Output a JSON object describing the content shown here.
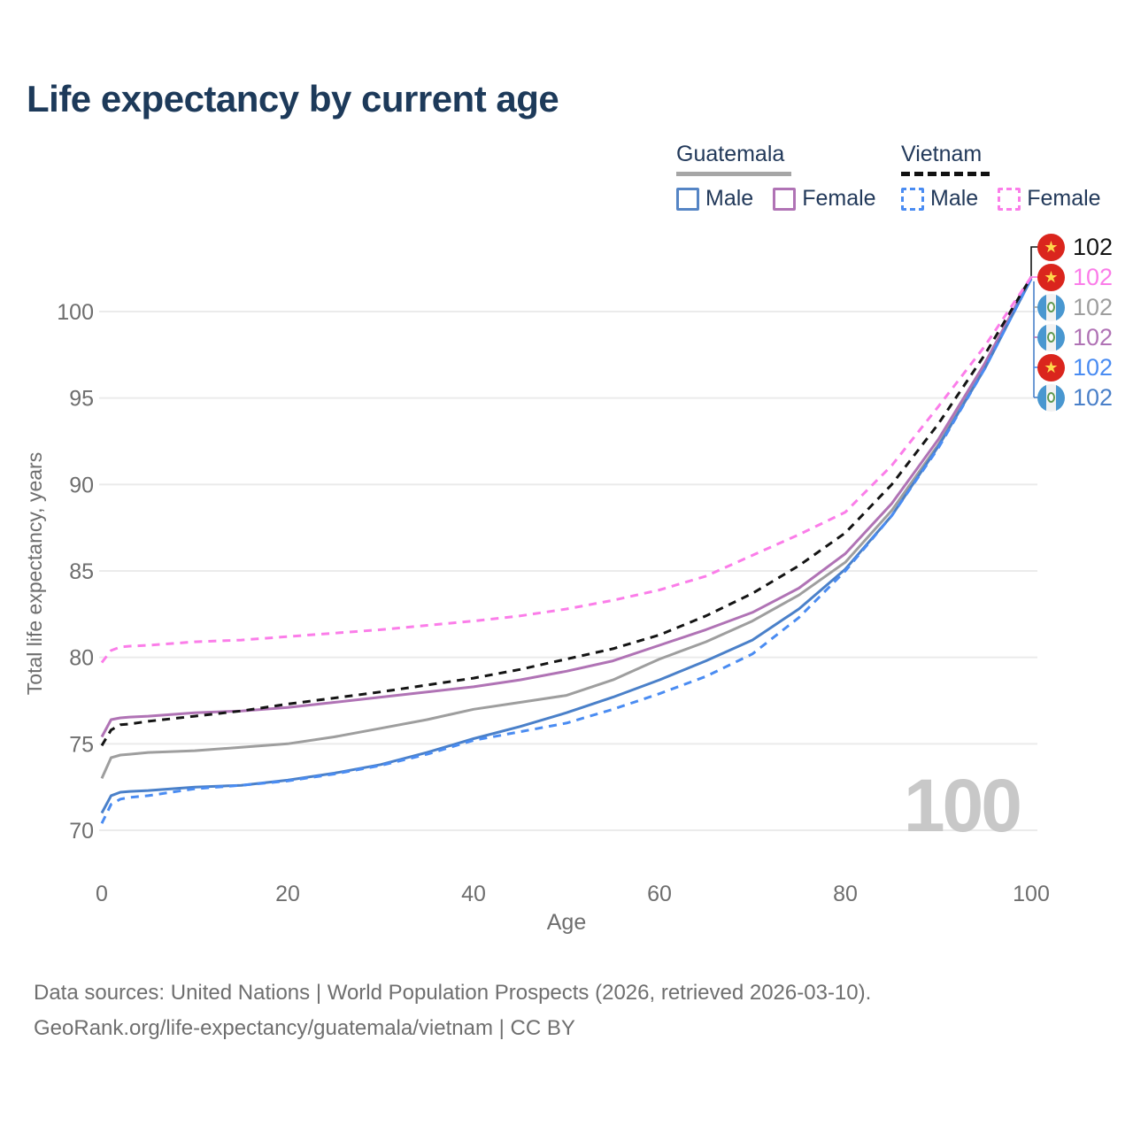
{
  "title": "Life expectancy by current age",
  "legend": {
    "guatemala_label": "Guatemala",
    "vietnam_label": "Vietnam",
    "male_label": "Male",
    "female_label": "Female"
  },
  "icons": {
    "vietnam_star": "★"
  },
  "chart_data": {
    "type": "line",
    "title": "Life expectancy by current age",
    "xlabel": "Age",
    "ylabel": "Total life expectancy, years",
    "xlim": [
      0,
      100
    ],
    "ylim": [
      70,
      102
    ],
    "x_ticks": [
      0,
      20,
      40,
      60,
      80,
      100
    ],
    "y_ticks": [
      70,
      75,
      80,
      85,
      90,
      95,
      100
    ],
    "grid": "horizontal",
    "age_counter_watermark": "100",
    "x": [
      0,
      1,
      2,
      3,
      5,
      10,
      15,
      20,
      25,
      30,
      35,
      40,
      45,
      50,
      55,
      60,
      65,
      70,
      75,
      80,
      85,
      90,
      95,
      100
    ],
    "series": [
      {
        "id": "guatemala-overall",
        "name": "Guatemala",
        "sex": "both",
        "color": "#9e9e9e",
        "dashed": false,
        "values": [
          73.0,
          74.2,
          74.35,
          74.4,
          74.5,
          74.6,
          74.8,
          75.0,
          75.4,
          75.9,
          76.4,
          77.0,
          77.4,
          77.8,
          78.7,
          79.9,
          80.9,
          82.1,
          83.6,
          85.5,
          88.5,
          92.3,
          96.8,
          101.9
        ]
      },
      {
        "id": "guatemala-female",
        "name": "Guatemala Female",
        "sex": "female",
        "color": "#b073b5",
        "dashed": false,
        "values": [
          75.4,
          76.4,
          76.5,
          76.55,
          76.6,
          76.8,
          76.9,
          77.1,
          77.4,
          77.7,
          78.0,
          78.3,
          78.7,
          79.2,
          79.8,
          80.7,
          81.6,
          82.6,
          84.0,
          86.0,
          88.9,
          92.6,
          97.0,
          102.0
        ]
      },
      {
        "id": "guatemala-male",
        "name": "Guatemala Male",
        "sex": "male",
        "color": "#4a80c9",
        "dashed": false,
        "values": [
          71.0,
          72.0,
          72.2,
          72.25,
          72.3,
          72.5,
          72.6,
          72.9,
          73.3,
          73.8,
          74.5,
          75.3,
          76.0,
          76.8,
          77.7,
          78.7,
          79.8,
          81.0,
          82.8,
          85.1,
          88.2,
          92.2,
          96.7,
          101.9
        ]
      },
      {
        "id": "vietnam-male",
        "name": "Vietnam Male",
        "sex": "male",
        "color": "#4a8cf2",
        "dashed": true,
        "values": [
          70.4,
          71.5,
          71.8,
          71.9,
          72.0,
          72.4,
          72.6,
          72.85,
          73.25,
          73.75,
          74.4,
          75.2,
          75.7,
          76.2,
          77.0,
          77.9,
          78.9,
          80.2,
          82.3,
          85.0,
          88.2,
          92.1,
          96.7,
          101.9
        ]
      },
      {
        "id": "vietnam-overall",
        "name": "Vietnam",
        "sex": "both",
        "color": "#141414",
        "dashed": true,
        "values": [
          74.9,
          75.8,
          76.1,
          76.15,
          76.3,
          76.6,
          76.9,
          77.3,
          77.65,
          78.0,
          78.4,
          78.8,
          79.3,
          79.9,
          80.5,
          81.3,
          82.4,
          83.7,
          85.3,
          87.2,
          90.0,
          93.5,
          97.5,
          102.0
        ]
      },
      {
        "id": "vietnam-female",
        "name": "Vietnam Female",
        "sex": "female",
        "color": "#fb7de9",
        "dashed": true,
        "values": [
          79.7,
          80.4,
          80.6,
          80.65,
          80.7,
          80.9,
          81.0,
          81.2,
          81.4,
          81.6,
          81.85,
          82.1,
          82.4,
          82.8,
          83.3,
          83.9,
          84.7,
          85.9,
          87.1,
          88.4,
          91.1,
          94.5,
          98.0,
          102.0
        ]
      }
    ]
  },
  "end_labels": [
    {
      "value": "102",
      "country": "vietnam",
      "color": "#141414"
    },
    {
      "value": "102",
      "country": "vietnam",
      "color": "#fb7de9"
    },
    {
      "value": "102",
      "country": "guatemala",
      "color": "#9e9e9e"
    },
    {
      "value": "102",
      "country": "guatemala",
      "color": "#b073b5"
    },
    {
      "value": "102",
      "country": "vietnam",
      "color": "#4a8cf2"
    },
    {
      "value": "102",
      "country": "guatemala",
      "color": "#4a80c9"
    }
  ],
  "footer": {
    "line1": "Data sources: United Nations | World Population Prospects (2026, retrieved 2026-03-10).",
    "line2": "GeoRank.org/life-expectancy/guatemala/vietnam | CC BY"
  }
}
